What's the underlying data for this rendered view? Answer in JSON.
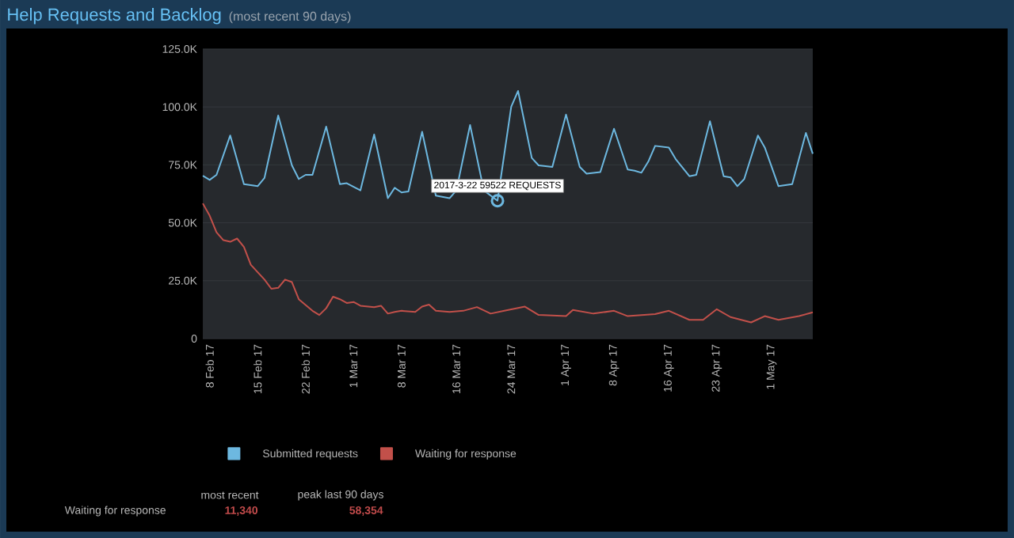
{
  "chart_data": {
    "type": "line",
    "title": "Help Requests and Backlog",
    "subtitle": "(most recent 90 days)",
    "xlim": [
      "2017-02-07",
      "2017-05-07"
    ],
    "xticks": [
      {
        "value": "2017-02-08",
        "label": "8 Feb 17"
      },
      {
        "value": "2017-02-15",
        "label": "15 Feb 17"
      },
      {
        "value": "2017-02-22",
        "label": "22 Feb 17"
      },
      {
        "value": "2017-03-01",
        "label": "1 Mar 17"
      },
      {
        "value": "2017-03-08",
        "label": "8 Mar 17"
      },
      {
        "value": "2017-03-16",
        "label": "16 Mar 17"
      },
      {
        "value": "2017-03-24",
        "label": "24 Mar 17"
      },
      {
        "value": "2017-04-01",
        "label": "1 Apr 17"
      },
      {
        "value": "2017-04-08",
        "label": "8 Apr 17"
      },
      {
        "value": "2017-04-16",
        "label": "16 Apr 17"
      },
      {
        "value": "2017-04-23",
        "label": "23 Apr 17"
      },
      {
        "value": "2017-05-01",
        "label": "1 May 17"
      }
    ],
    "ylim": [
      0,
      125000
    ],
    "yticks": [
      0,
      {
        "value": 25000,
        "label": "25.0K"
      },
      {
        "value": 50000,
        "label": "50.0K"
      },
      {
        "value": 75000,
        "label": "75.0K"
      },
      {
        "value": 100000,
        "label": "100.0K"
      },
      {
        "value": 125000,
        "label": "125.0K"
      }
    ],
    "grid": "y",
    "legend": "bottom",
    "series": [
      {
        "name": "Submitted requests",
        "color": "#6db8e0",
        "x": [
          "2017-02-07",
          "2017-02-08",
          "2017-02-09",
          "2017-02-11",
          "2017-02-13",
          "2017-02-15",
          "2017-02-16",
          "2017-02-18",
          "2017-02-20",
          "2017-02-21",
          "2017-02-22",
          "2017-02-23",
          "2017-02-25",
          "2017-02-27",
          "2017-02-28",
          "2017-03-02",
          "2017-03-04",
          "2017-03-06",
          "2017-03-07",
          "2017-03-08",
          "2017-03-09",
          "2017-03-11",
          "2017-03-13",
          "2017-03-15",
          "2017-03-16",
          "2017-03-18",
          "2017-03-20",
          "2017-03-22",
          "2017-03-24",
          "2017-03-25",
          "2017-03-27",
          "2017-03-28",
          "2017-03-30",
          "2017-04-01",
          "2017-04-03",
          "2017-04-04",
          "2017-04-06",
          "2017-04-08",
          "2017-04-10",
          "2017-04-11",
          "2017-04-12",
          "2017-04-13",
          "2017-04-14",
          "2017-04-16",
          "2017-04-17",
          "2017-04-19",
          "2017-04-20",
          "2017-04-22",
          "2017-04-24",
          "2017-04-25",
          "2017-04-26",
          "2017-04-27",
          "2017-04-29",
          "2017-04-30",
          "2017-05-02",
          "2017-05-04",
          "2017-05-06",
          "2017-05-07"
        ],
        "values": [
          70300,
          68500,
          70700,
          87700,
          66700,
          65800,
          69400,
          96300,
          74800,
          68900,
          70700,
          70700,
          91500,
          66700,
          67100,
          64000,
          88100,
          60600,
          65100,
          63100,
          63500,
          89300,
          61700,
          60600,
          64000,
          92200,
          64000,
          59522,
          100100,
          106900,
          78000,
          74800,
          74100,
          96700,
          74100,
          71200,
          71900,
          90600,
          73000,
          72500,
          71600,
          76400,
          83200,
          82500,
          77500,
          70100,
          70700,
          93800,
          70100,
          69600,
          65800,
          68900,
          87700,
          82500,
          65800,
          66700,
          88800,
          79800
        ]
      },
      {
        "name": "Waiting for response",
        "color": "#c2504a",
        "x": [
          "2017-02-07",
          "2017-02-08",
          "2017-02-09",
          "2017-02-10",
          "2017-02-11",
          "2017-02-12",
          "2017-02-13",
          "2017-02-14",
          "2017-02-16",
          "2017-02-17",
          "2017-02-18",
          "2017-02-19",
          "2017-02-20",
          "2017-02-21",
          "2017-02-23",
          "2017-02-24",
          "2017-02-25",
          "2017-02-26",
          "2017-02-27",
          "2017-02-28",
          "2017-03-01",
          "2017-03-02",
          "2017-03-04",
          "2017-03-05",
          "2017-03-06",
          "2017-03-07",
          "2017-03-08",
          "2017-03-10",
          "2017-03-11",
          "2017-03-12",
          "2017-03-13",
          "2017-03-15",
          "2017-03-17",
          "2017-03-19",
          "2017-03-21",
          "2017-03-23",
          "2017-03-26",
          "2017-03-28",
          "2017-04-01",
          "2017-04-02",
          "2017-04-05",
          "2017-04-08",
          "2017-04-10",
          "2017-04-14",
          "2017-04-16",
          "2017-04-19",
          "2017-04-21",
          "2017-04-23",
          "2017-04-25",
          "2017-04-28",
          "2017-04-30",
          "2017-05-02",
          "2017-05-05",
          "2017-05-07"
        ],
        "values": [
          58354,
          53100,
          45900,
          42500,
          41800,
          43200,
          39600,
          31900,
          25500,
          21500,
          21900,
          25500,
          24400,
          17000,
          12000,
          10200,
          13100,
          18100,
          17000,
          15400,
          15800,
          14200,
          13600,
          14200,
          10800,
          11500,
          12000,
          11500,
          13800,
          14700,
          12000,
          11500,
          12000,
          13600,
          10800,
          12000,
          13800,
          10200,
          9700,
          12400,
          10800,
          12000,
          9700,
          10600,
          12000,
          8100,
          8100,
          12700,
          9300,
          7000,
          9700,
          8100,
          9700,
          11340
        ]
      }
    ],
    "annotations": [
      {
        "text": "2017-3-22 59522 REQUESTS",
        "x": "2017-03-22",
        "y": 59522
      },
      "most recent",
      "peak last 90 days",
      "Waiting for response",
      "11,340",
      "58,354"
    ]
  }
}
